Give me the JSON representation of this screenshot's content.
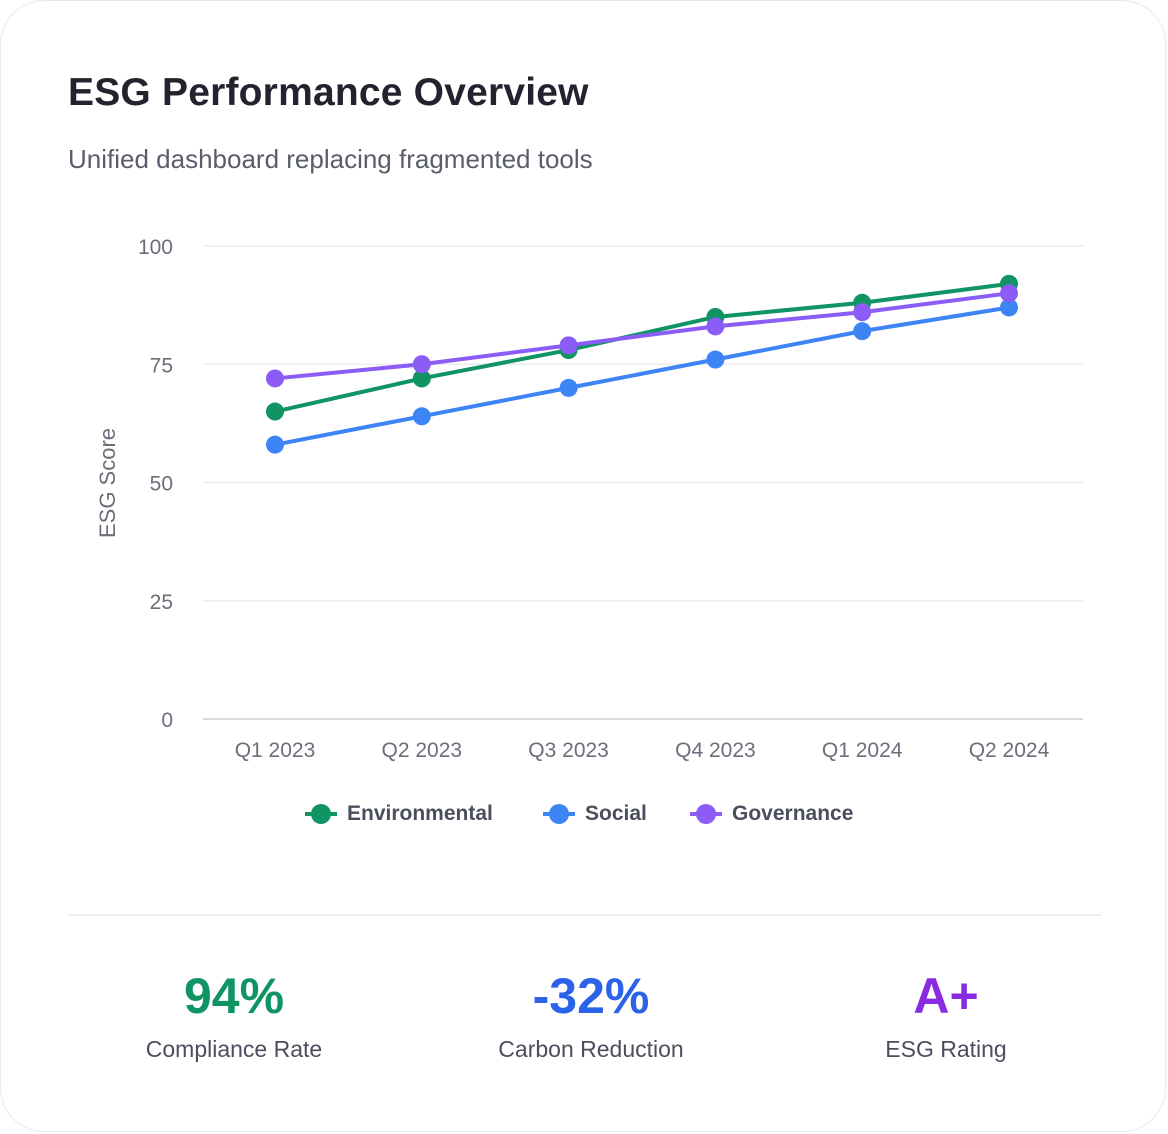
{
  "header": {
    "title": "ESG Performance Overview",
    "subtitle": "Unified dashboard replacing fragmented tools"
  },
  "chart_data": {
    "type": "line",
    "title": "ESG Performance Overview",
    "xlabel": "",
    "ylabel": "ESG Score",
    "ylim": [
      0,
      100
    ],
    "yticks": [
      0,
      25,
      50,
      75,
      100
    ],
    "grid": true,
    "legend": "bottom-center",
    "categories": [
      "Q1 2023",
      "Q2 2023",
      "Q3 2023",
      "Q4 2023",
      "Q1 2024",
      "Q2 2024"
    ],
    "series": [
      {
        "name": "Environmental",
        "color": "#109463",
        "values": [
          65,
          72,
          78,
          85,
          88,
          92
        ]
      },
      {
        "name": "Social",
        "color": "#3d84f5",
        "values": [
          58,
          64,
          70,
          76,
          82,
          87
        ]
      },
      {
        "name": "Governance",
        "color": "#8b5cf6",
        "values": [
          72,
          75,
          79,
          83,
          86,
          90
        ]
      }
    ]
  },
  "stats": [
    {
      "value": "94%",
      "label": "Compliance Rate",
      "color": "#109463"
    },
    {
      "value": "-32%",
      "label": "Carbon Reduction",
      "color": "#2a62e8"
    },
    {
      "value": "A+",
      "label": "ESG Rating",
      "color": "#8a2be2"
    }
  ]
}
